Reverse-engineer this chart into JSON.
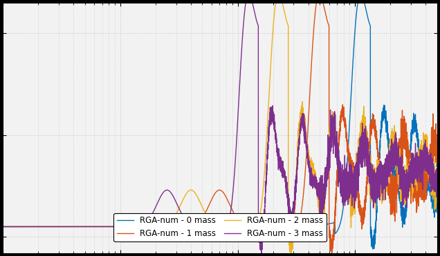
{
  "legend_entries": [
    "RGA-num - 0 mass",
    "RGA-num - 1 mass",
    "RGA-num - 2 mass",
    "RGA-num - 3 mass"
  ],
  "colors": [
    "#0072BD",
    "#D95319",
    "#EDB120",
    "#7E2F8E"
  ],
  "line_width": 1.0,
  "background_color": "#000000",
  "plot_bg_color": "#f2f2f2",
  "ylim": [
    -0.08,
    1.15
  ],
  "xlim_log": [
    -1.0,
    2.699
  ],
  "res_freqs": [
    90,
    40,
    18,
    10
  ],
  "pre_bump_freqs": [
    null,
    7,
    4,
    2.5
  ],
  "settle_vals": [
    0.33,
    0.33,
    0.33,
    0.33
  ],
  "noise_seeds": [
    10,
    20,
    30,
    40
  ],
  "grid_color": "#c8c8c8",
  "tick_fontsize": 10,
  "legend_fontsize": 8.5
}
